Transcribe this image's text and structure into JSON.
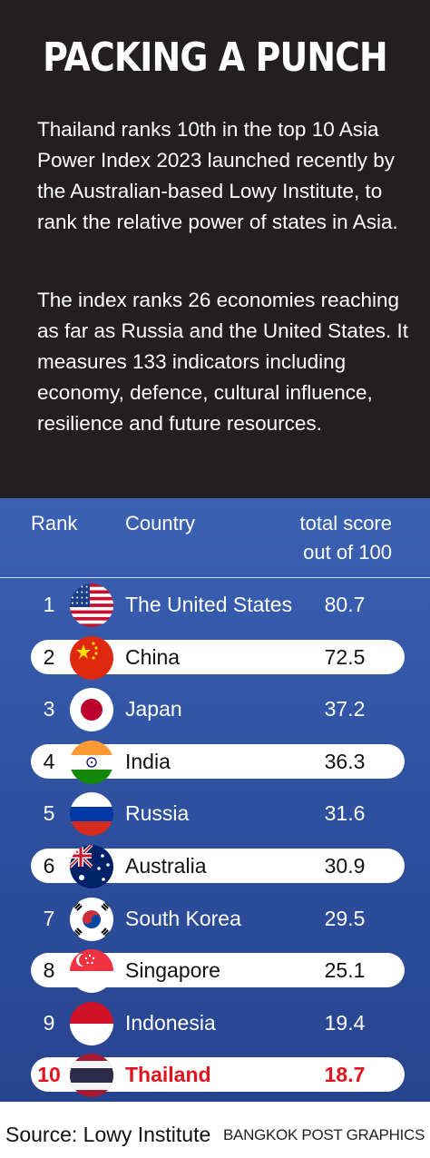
{
  "header": {
    "title": "PACKING A PUNCH",
    "paragraph1": "Thailand ranks 10th in the top 10 Asia Power Index 2023 launched recently by the Australian-based Lowy Institute, to rank the relative power of states in Asia.",
    "paragraph2": "The index ranks 26 economies reaching as far as Russia and the United States. It measures 133 indicators including economy, defence, cultural influence, resilience and future resources."
  },
  "chart_data": {
    "type": "table",
    "columns": {
      "rank": "Rank",
      "country": "Country",
      "score_line1": "total score",
      "score_line2": "out of 100"
    },
    "rows": [
      {
        "rank": "1",
        "country": "The United States",
        "score": "80.7",
        "value": 80.7,
        "flag": "flag-usa"
      },
      {
        "rank": "2",
        "country": "China",
        "score": "72.5",
        "value": 72.5,
        "flag": "flag-china"
      },
      {
        "rank": "3",
        "country": "Japan",
        "score": "37.2",
        "value": 37.2,
        "flag": "flag-japan"
      },
      {
        "rank": "4",
        "country": "India",
        "score": "36.3",
        "value": 36.3,
        "flag": "flag-india"
      },
      {
        "rank": "5",
        "country": "Russia",
        "score": "31.6",
        "value": 31.6,
        "flag": "flag-russia"
      },
      {
        "rank": "6",
        "country": "Australia",
        "score": "30.9",
        "value": 30.9,
        "flag": "flag-australia"
      },
      {
        "rank": "7",
        "country": "South Korea",
        "score": "29.5",
        "value": 29.5,
        "flag": "flag-south-korea"
      },
      {
        "rank": "8",
        "country": "Singapore",
        "score": "25.1",
        "value": 25.1,
        "flag": "flag-singapore"
      },
      {
        "rank": "9",
        "country": "Indonesia",
        "score": "19.4",
        "value": 19.4,
        "flag": "flag-indonesia"
      },
      {
        "rank": "10",
        "country": "Thailand",
        "score": "18.7",
        "value": 18.7,
        "flag": "flag-thailand"
      }
    ],
    "highlighted_country": "Thailand"
  },
  "colors": {
    "header_bg": "#231f20",
    "panel_blue": "#2e4f9e",
    "highlight_red": "#e3141e"
  },
  "footer": {
    "source": "Source: Lowy Institute",
    "credit": "BANGKOK POST GRAPHICS"
  }
}
